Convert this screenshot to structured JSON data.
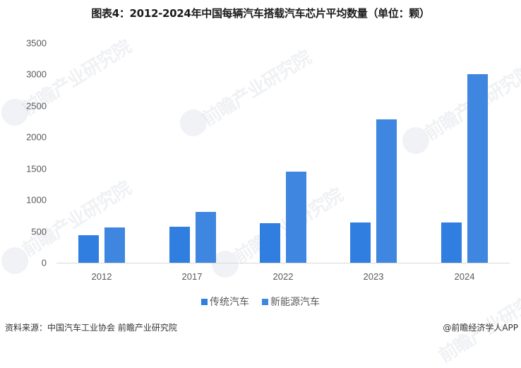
{
  "title": "图表4：2012-2024年中国每辆汽车搭载汽车芯片平均数量（单位：颗）",
  "colors": {
    "series_traditional": "#2f7ee0",
    "series_nev": "#3f86e0",
    "axis": "#d9d9d9"
  },
  "y_axis": {
    "ticks": [
      "0",
      "500",
      "1000",
      "1500",
      "2000",
      "2500",
      "3000",
      "3500"
    ]
  },
  "x_axis": {
    "ticks": [
      "2012",
      "2017",
      "2022",
      "2023",
      "2024"
    ]
  },
  "legend": {
    "items": [
      {
        "label": "传统汽车"
      },
      {
        "label": "新能源汽车"
      }
    ]
  },
  "footer": {
    "source": "资料来源：中国汽车工业协会 前瞻产业研究院",
    "credit": "@前瞻经济学人APP"
  },
  "watermark": {
    "text": "前瞻产业研究院"
  },
  "chart_data": {
    "type": "bar",
    "title": "图表4：2012-2024年中国每辆汽车搭载汽车芯片平均数量（单位：颗）",
    "xlabel": "",
    "ylabel": "",
    "unit": "颗",
    "categories": [
      "2012",
      "2017",
      "2022",
      "2023",
      "2024"
    ],
    "series": [
      {
        "name": "传统汽车",
        "values": [
          440,
          575,
          630,
          640,
          640
        ]
      },
      {
        "name": "新能源汽车",
        "values": [
          560,
          810,
          1450,
          2280,
          3000
        ]
      }
    ],
    "ylim": [
      0,
      3500
    ],
    "yticks": [
      0,
      500,
      1000,
      1500,
      2000,
      2500,
      3000,
      3500
    ],
    "grid": false,
    "legend_position": "bottom"
  }
}
